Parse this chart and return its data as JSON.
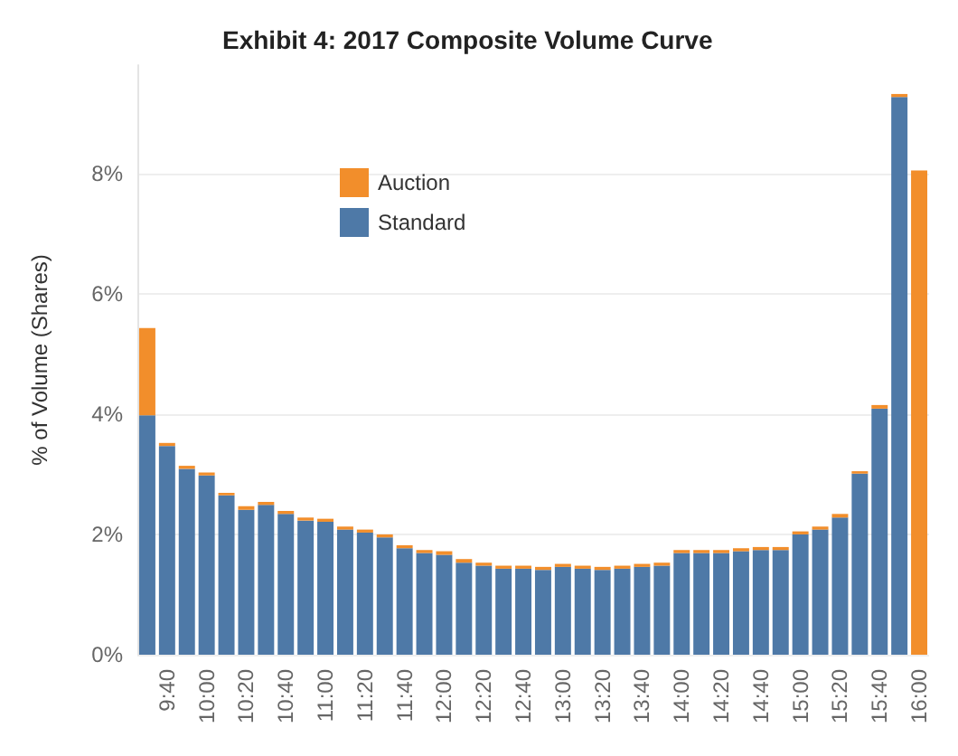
{
  "chart_data": {
    "type": "bar",
    "title": "Exhibit 4: 2017 Composite Volume Curve",
    "ylabel": "% of Volume (Shares)",
    "categories": [
      null,
      "9:40",
      null,
      "10:00",
      null,
      "10:20",
      null,
      "10:40",
      null,
      "11:00",
      null,
      "11:20",
      null,
      "11:40",
      null,
      "12:00",
      null,
      "12:20",
      null,
      "12:40",
      null,
      "13:00",
      null,
      "13:20",
      null,
      "13:40",
      null,
      "14:00",
      null,
      "14:20",
      null,
      "14:40",
      null,
      "15:00",
      null,
      "15:20",
      null,
      "15:40",
      null,
      "16:00"
    ],
    "stacked": true,
    "series": [
      {
        "name": "Standard",
        "color": "#4e79a7",
        "values": [
          3.98,
          3.47,
          3.09,
          2.98,
          2.65,
          2.41,
          2.49,
          2.34,
          2.23,
          2.21,
          2.08,
          2.03,
          1.95,
          1.77,
          1.69,
          1.66,
          1.53,
          1.48,
          1.43,
          1.43,
          1.41,
          1.46,
          1.43,
          1.41,
          1.43,
          1.46,
          1.48,
          1.69,
          1.69,
          1.69,
          1.72,
          1.74,
          1.74,
          2.0,
          2.08,
          2.28,
          3.01,
          4.09,
          9.27,
          0
        ]
      },
      {
        "name": "Auction",
        "color": "#f28e2b",
        "values": [
          1.45,
          0.05,
          0.05,
          0.05,
          0.04,
          0.06,
          0.05,
          0.05,
          0.05,
          0.05,
          0.05,
          0.05,
          0.05,
          0.05,
          0.05,
          0.06,
          0.06,
          0.05,
          0.05,
          0.05,
          0.05,
          0.05,
          0.05,
          0.05,
          0.05,
          0.05,
          0.05,
          0.05,
          0.05,
          0.05,
          0.05,
          0.05,
          0.05,
          0.05,
          0.05,
          0.06,
          0.04,
          0.06,
          0.05,
          8.05
        ]
      }
    ],
    "ylim": [
      0,
      9.8
    ],
    "yticks": [
      {
        "value": 0,
        "label": "0%"
      },
      {
        "value": 2,
        "label": "2%"
      },
      {
        "value": 4,
        "label": "4%"
      },
      {
        "value": 6,
        "label": "6%"
      },
      {
        "value": 8,
        "label": "8%"
      }
    ],
    "grid": "y",
    "legend": "top left"
  }
}
